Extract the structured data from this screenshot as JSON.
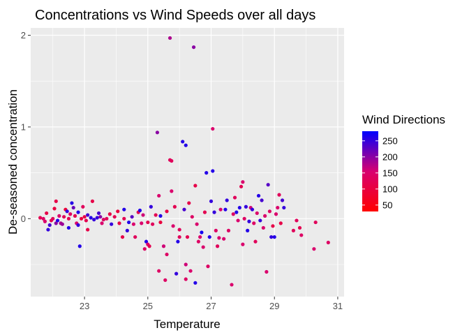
{
  "chart_data": {
    "type": "scatter",
    "title": "Concentrations vs Wind Speeds over all days",
    "xlabel": "Temperature",
    "ylabel": "De-seasoned concentration",
    "xlim": [
      21.3,
      31.2
    ],
    "ylim": [
      -0.85,
      2.08
    ],
    "x_ticks": [
      23,
      25,
      27,
      29,
      31
    ],
    "x_tick_labels": [
      "23",
      "25",
      "27",
      "29",
      "31"
    ],
    "y_ticks": [
      0,
      1,
      2
    ],
    "y_tick_labels": [
      "0",
      "1",
      "2"
    ],
    "grid": true,
    "panel_background": "#ebebeb",
    "legend": {
      "title": "Wind Directions",
      "placement": "right",
      "type": "colorbar",
      "range": [
        30,
        280
      ],
      "breaks": [
        50,
        100,
        150,
        200,
        250
      ],
      "break_labels": [
        "50",
        "100",
        "150",
        "200",
        "250"
      ],
      "low_color": "#ff0000",
      "high_color": "#0000ff"
    },
    "series": [
      {
        "value_key": [
          "temperature",
          "concentration",
          "wind_direction"
        ],
        "points": [
          [
            21.6,
            0.01,
            120
          ],
          [
            21.7,
            0.0,
            140
          ],
          [
            21.75,
            -0.03,
            150
          ],
          [
            21.8,
            0.06,
            110
          ],
          [
            21.85,
            -0.12,
            250
          ],
          [
            21.9,
            -0.07,
            240
          ],
          [
            21.95,
            -0.02,
            120
          ],
          [
            22.0,
            0.0,
            130
          ],
          [
            22.05,
            0.11,
            100
          ],
          [
            22.1,
            0.19,
            110
          ],
          [
            22.1,
            -0.05,
            200
          ],
          [
            22.15,
            -0.02,
            260
          ],
          [
            22.2,
            0.03,
            150
          ],
          [
            22.25,
            -0.05,
            180
          ],
          [
            22.3,
            -0.06,
            190
          ],
          [
            22.35,
            0.02,
            130
          ],
          [
            22.4,
            0.1,
            90
          ],
          [
            22.45,
            0.08,
            250
          ],
          [
            22.5,
            -0.1,
            260
          ],
          [
            22.5,
            0.0,
            120
          ],
          [
            22.55,
            0.05,
            140
          ],
          [
            22.6,
            0.17,
            260
          ],
          [
            22.65,
            0.12,
            220
          ],
          [
            22.7,
            0.03,
            120
          ],
          [
            22.75,
            -0.05,
            150
          ],
          [
            22.8,
            0.07,
            260
          ],
          [
            22.8,
            -0.07,
            250
          ],
          [
            22.85,
            -0.3,
            260
          ],
          [
            22.9,
            0.0,
            100
          ],
          [
            22.95,
            0.13,
            130
          ],
          [
            23.0,
            0.02,
            110
          ],
          [
            23.05,
            -0.02,
            120
          ],
          [
            23.1,
            0.04,
            240
          ],
          [
            23.1,
            -0.12,
            110
          ],
          [
            23.2,
            0.01,
            260
          ],
          [
            23.25,
            0.19,
            110
          ],
          [
            23.3,
            -0.01,
            250
          ],
          [
            23.4,
            0.01,
            250
          ],
          [
            23.45,
            0.06,
            240
          ],
          [
            23.5,
            0.02,
            200
          ],
          [
            23.55,
            -0.05,
            150
          ],
          [
            23.6,
            -0.01,
            140
          ],
          [
            23.7,
            0.0,
            130
          ],
          [
            23.8,
            0.05,
            110
          ],
          [
            23.85,
            -0.06,
            250
          ],
          [
            23.95,
            0.02,
            120
          ],
          [
            24.05,
            0.08,
            100
          ],
          [
            24.1,
            -0.05,
            110
          ],
          [
            24.2,
            -0.2,
            110
          ],
          [
            24.25,
            0.0,
            120
          ],
          [
            24.25,
            0.1,
            260
          ],
          [
            24.35,
            -0.13,
            250
          ],
          [
            24.4,
            -0.04,
            260
          ],
          [
            24.5,
            0.02,
            230
          ],
          [
            24.55,
            -0.06,
            150
          ],
          [
            24.6,
            -0.2,
            130
          ],
          [
            24.7,
            0.07,
            120
          ],
          [
            24.75,
            0.09,
            260
          ],
          [
            24.8,
            -0.05,
            150
          ],
          [
            24.85,
            0.04,
            160
          ],
          [
            24.9,
            -0.33,
            140
          ],
          [
            24.95,
            -0.25,
            260
          ],
          [
            25.0,
            -0.28,
            150
          ],
          [
            25.0,
            -0.04,
            120
          ],
          [
            25.05,
            -0.3,
            120
          ],
          [
            25.1,
            0.13,
            250
          ],
          [
            25.15,
            -0.06,
            130
          ],
          [
            25.25,
            0.04,
            120
          ],
          [
            25.3,
            0.94,
            200
          ],
          [
            25.35,
            0.25,
            150
          ],
          [
            25.35,
            -0.57,
            140
          ],
          [
            25.4,
            -0.04,
            100
          ],
          [
            25.4,
            0.03,
            260
          ],
          [
            25.5,
            -0.3,
            160
          ],
          [
            25.55,
            -0.67,
            140
          ],
          [
            25.6,
            -0.39,
            140
          ],
          [
            25.6,
            0.08,
            110
          ],
          [
            25.7,
            0.64,
            130
          ],
          [
            25.7,
            1.97,
            180
          ],
          [
            25.75,
            0.63,
            130
          ],
          [
            25.75,
            0.3,
            150
          ],
          [
            25.8,
            -0.08,
            150
          ],
          [
            25.85,
            0.13,
            120
          ],
          [
            25.9,
            -0.6,
            250
          ],
          [
            25.95,
            -0.25,
            260
          ],
          [
            26.0,
            -0.12,
            130
          ],
          [
            26.0,
            -0.2,
            130
          ],
          [
            26.1,
            0.84,
            260
          ],
          [
            26.15,
            0.1,
            240
          ],
          [
            26.2,
            0.8,
            260
          ],
          [
            26.2,
            -0.5,
            160
          ],
          [
            26.2,
            -0.66,
            140
          ],
          [
            26.25,
            -0.2,
            120
          ],
          [
            26.3,
            0.17,
            110
          ],
          [
            26.35,
            -0.57,
            150
          ],
          [
            26.4,
            0.02,
            140
          ],
          [
            26.45,
            1.87,
            200
          ],
          [
            26.5,
            -0.7,
            260
          ],
          [
            26.5,
            0.36,
            110
          ],
          [
            26.55,
            -0.06,
            150
          ],
          [
            26.6,
            -0.25,
            140
          ],
          [
            26.65,
            -0.2,
            150
          ],
          [
            26.7,
            -0.15,
            270
          ],
          [
            26.75,
            -0.31,
            150
          ],
          [
            26.8,
            0.07,
            120
          ],
          [
            26.85,
            0.5,
            260
          ],
          [
            26.9,
            -0.52,
            140
          ],
          [
            26.95,
            -0.2,
            260
          ],
          [
            27.0,
            0.19,
            250
          ],
          [
            27.05,
            0.98,
            150
          ],
          [
            27.05,
            0.52,
            260
          ],
          [
            27.1,
            0.07,
            250
          ],
          [
            27.15,
            -0.13,
            140
          ],
          [
            27.2,
            -0.3,
            130
          ],
          [
            27.25,
            -0.21,
            150
          ],
          [
            27.3,
            0.1,
            150
          ],
          [
            27.4,
            -0.22,
            150
          ],
          [
            27.45,
            0.1,
            260
          ],
          [
            27.5,
            0.2,
            250
          ],
          [
            27.55,
            -0.13,
            140
          ],
          [
            27.65,
            -0.72,
            150
          ],
          [
            27.7,
            0.05,
            140
          ],
          [
            27.75,
            0.23,
            130
          ],
          [
            27.8,
            0.07,
            260
          ],
          [
            27.85,
            -0.02,
            150
          ],
          [
            27.9,
            0.12,
            260
          ],
          [
            27.95,
            0.35,
            120
          ],
          [
            28.0,
            0.4,
            150
          ],
          [
            28.0,
            -0.28,
            150
          ],
          [
            28.05,
            0.0,
            140
          ],
          [
            28.1,
            0.13,
            250
          ],
          [
            28.15,
            -0.13,
            260
          ],
          [
            28.2,
            -0.03,
            250
          ],
          [
            28.25,
            0.12,
            160
          ],
          [
            28.3,
            0.1,
            250
          ],
          [
            28.35,
            -0.05,
            140
          ],
          [
            28.4,
            -0.25,
            130
          ],
          [
            28.45,
            0.06,
            150
          ],
          [
            28.5,
            0.25,
            260
          ],
          [
            28.55,
            -0.02,
            250
          ],
          [
            28.6,
            0.2,
            240
          ],
          [
            28.65,
            -0.1,
            150
          ],
          [
            28.7,
            0.03,
            150
          ],
          [
            28.75,
            -0.58,
            150
          ],
          [
            28.8,
            0.37,
            230
          ],
          [
            28.85,
            0.08,
            140
          ],
          [
            28.9,
            -0.2,
            250
          ],
          [
            28.95,
            -0.08,
            110
          ],
          [
            29.0,
            -0.2,
            260
          ],
          [
            29.05,
            0.05,
            150
          ],
          [
            29.1,
            0.12,
            150
          ],
          [
            29.15,
            0.26,
            130
          ],
          [
            29.2,
            -0.05,
            110
          ],
          [
            29.25,
            0.2,
            240
          ],
          [
            29.3,
            0.12,
            250
          ],
          [
            29.6,
            -0.13,
            130
          ],
          [
            29.7,
            -0.02,
            130
          ],
          [
            29.8,
            -0.1,
            120
          ],
          [
            29.85,
            -0.18,
            140
          ],
          [
            30.25,
            -0.33,
            150
          ],
          [
            30.3,
            -0.04,
            130
          ],
          [
            30.7,
            -0.26,
            140
          ]
        ]
      }
    ]
  }
}
